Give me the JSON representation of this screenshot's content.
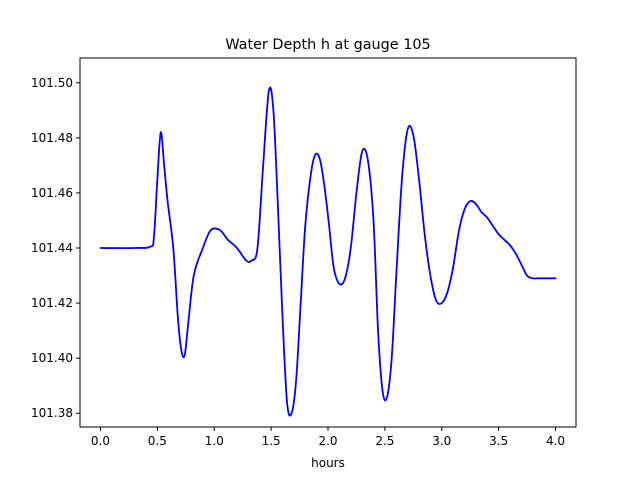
{
  "chart_data": {
    "type": "line",
    "title": "Water Depth h at gauge 105",
    "xlabel": "hours",
    "ylabel": "",
    "xlim": [
      -0.18,
      4.18
    ],
    "ylim": [
      101.375,
      101.509
    ],
    "xticks": [
      0.0,
      0.5,
      1.0,
      1.5,
      2.0,
      2.5,
      3.0,
      3.5,
      4.0
    ],
    "xtick_labels": [
      "0.0",
      "0.5",
      "1.0",
      "1.5",
      "2.0",
      "2.5",
      "3.0",
      "3.5",
      "4.0"
    ],
    "yticks": [
      101.38,
      101.4,
      101.42,
      101.44,
      101.46,
      101.48,
      101.5
    ],
    "ytick_labels": [
      "101.38",
      "101.40",
      "101.42",
      "101.44",
      "101.46",
      "101.48",
      "101.50"
    ],
    "grid": false,
    "series": [
      {
        "name": "",
        "color": "#0000ff",
        "x": [
          0.0,
          0.3,
          0.44,
          0.47,
          0.5,
          0.53,
          0.56,
          0.59,
          0.64,
          0.68,
          0.71,
          0.74,
          0.77,
          0.82,
          0.9,
          0.97,
          1.05,
          1.12,
          1.2,
          1.28,
          1.33,
          1.38,
          1.43,
          1.48,
          1.52,
          1.56,
          1.6,
          1.64,
          1.68,
          1.72,
          1.76,
          1.8,
          1.85,
          1.89,
          1.93,
          1.97,
          2.01,
          2.05,
          2.1,
          2.15,
          2.2,
          2.25,
          2.3,
          2.35,
          2.4,
          2.44,
          2.48,
          2.52,
          2.56,
          2.6,
          2.65,
          2.7,
          2.75,
          2.8,
          2.85,
          2.9,
          2.95,
          3.0,
          3.05,
          3.1,
          3.15,
          3.2,
          3.25,
          3.3,
          3.35,
          3.4,
          3.45,
          3.5,
          3.55,
          3.6,
          3.65,
          3.7,
          3.75,
          3.8,
          3.85,
          3.9,
          3.95,
          4.0
        ],
        "y": [
          101.44,
          101.44,
          101.4405,
          101.444,
          101.465,
          101.482,
          101.47,
          101.457,
          101.44,
          101.415,
          101.403,
          101.401,
          101.412,
          101.43,
          101.44,
          101.4465,
          101.4465,
          101.443,
          101.44,
          101.4355,
          101.4355,
          101.44,
          101.47,
          101.497,
          101.49,
          101.455,
          101.415,
          101.384,
          101.38,
          101.392,
          101.42,
          101.448,
          101.467,
          101.474,
          101.472,
          101.462,
          101.448,
          101.433,
          101.427,
          101.429,
          101.44,
          101.46,
          101.475,
          101.472,
          101.45,
          101.41,
          101.388,
          101.386,
          101.4,
          101.43,
          101.465,
          101.483,
          101.481,
          101.465,
          101.445,
          101.43,
          101.421,
          101.42,
          101.424,
          101.433,
          101.446,
          101.454,
          101.457,
          101.456,
          101.453,
          101.451,
          101.448,
          101.445,
          101.443,
          101.441,
          101.438,
          101.434,
          101.43,
          101.429,
          101.429,
          101.429,
          101.429,
          101.429
        ]
      }
    ]
  }
}
